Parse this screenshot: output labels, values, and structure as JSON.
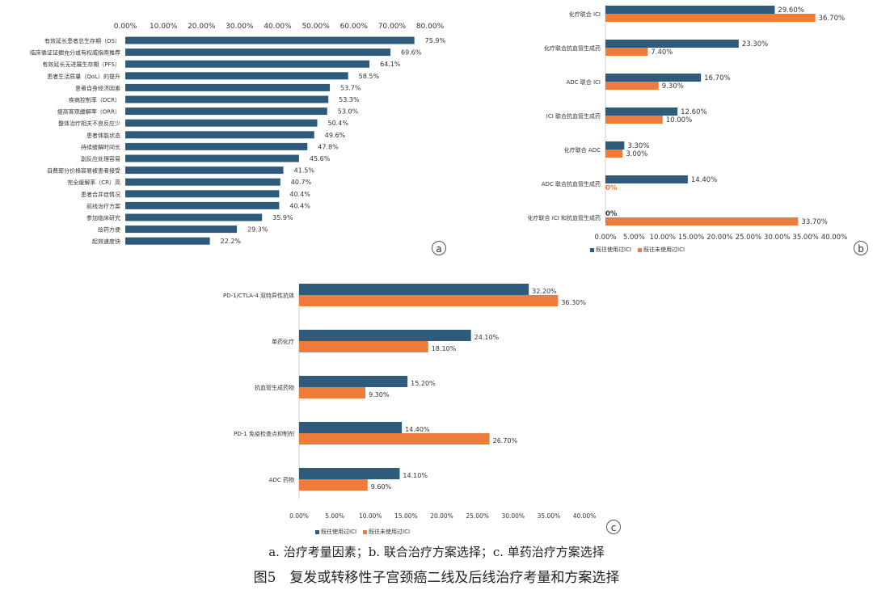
{
  "chart_data": [
    {
      "panel": "a",
      "type": "bar",
      "orientation": "horizontal",
      "categories": [
        "有效延长患者总生存期（OS）",
        "临床循证证据充分或有权威指南推荐",
        "有效延长无进展生存期（PFS）",
        "患者生活质量（QoL）的提升",
        "患者自身经济因素",
        "疾病控制率（DCR）",
        "提高客观缓解率（ORR）",
        "整体治疗相关不良反应少",
        "患者体能状态",
        "持续缓解时间长",
        "副反应处理容易",
        "自费部分价格容易被患者接受",
        "完全缓解率（CR）高",
        "患者合并症情况",
        "前线治疗方案",
        "参加临床研究",
        "给药方便",
        "起效速度快"
      ],
      "values": [
        75.9,
        69.6,
        64.1,
        58.5,
        53.7,
        53.3,
        53.0,
        50.4,
        49.6,
        47.8,
        45.6,
        41.5,
        40.7,
        40.4,
        40.4,
        35.9,
        29.3,
        22.2
      ],
      "value_labels": [
        "75.9%",
        "69.6%",
        "64.1%",
        "58.5%",
        "53.7%",
        "53.3%",
        "53.0%",
        "50.4%",
        "49.6%",
        "47.8%",
        "45.6%",
        "41.5%",
        "40.7%",
        "40.4%",
        "40.4%",
        "35.9%",
        "29.3%",
        "22.2%"
      ],
      "axis_ticks": [
        "0.00%",
        "10.00%",
        "20.00%",
        "30.00%",
        "40.00%",
        "50.00%",
        "60.00%",
        "70.00%",
        "80.00%"
      ],
      "xlim": [
        0,
        80
      ],
      "axis_position": "top",
      "grid": false,
      "color": "#2e5b7b",
      "letter": "a"
    },
    {
      "panel": "b",
      "type": "bar",
      "orientation": "horizontal",
      "categories": [
        "化疗联合 ICI",
        "化疗联合抗血管生成药",
        "ADC 联合 ICI",
        "ICI 联合抗血管生成药",
        "化疗联合 ADC",
        "ADC 联合抗血管生成药",
        "化疗联合 ICI 和抗血管生成药"
      ],
      "series": [
        {
          "name": "既往使用过ICI",
          "color": "#2e5b7b",
          "values": [
            29.6,
            23.3,
            16.7,
            12.6,
            3.3,
            14.4,
            0
          ],
          "value_labels": [
            "29.60%",
            "23.30%",
            "16.70%",
            "12.60%",
            "3.30%",
            "14.40%",
            "0%"
          ]
        },
        {
          "name": "既往未使用过ICI",
          "color": "#ee7b3a",
          "values": [
            36.7,
            7.4,
            9.3,
            10.0,
            3.0,
            0,
            33.7
          ],
          "value_labels": [
            "36.70%",
            "7.40%",
            "9.30%",
            "10.00%",
            "3.00%",
            "0%",
            "33.70%"
          ]
        }
      ],
      "axis_ticks": [
        "0.00%",
        "5.00%",
        "10.00%",
        "15.00%",
        "20.00%",
        "25.00%",
        "30.00%",
        "35.00%",
        "40.00%"
      ],
      "xlim": [
        0,
        40
      ],
      "axis_position": "bottom",
      "legend_position": "bottom",
      "grid": false,
      "letter": "b"
    },
    {
      "panel": "c",
      "type": "bar",
      "orientation": "horizontal",
      "categories": [
        "PD-1/CTLA-4 双特异性抗体",
        "单药化疗",
        "抗血管生成药物",
        "PD-1 免疫检查点抑制剂",
        "ADC 药物"
      ],
      "series": [
        {
          "name": "既往使用过ICI",
          "color": "#2e5b7b",
          "values": [
            32.2,
            24.1,
            15.2,
            14.4,
            14.1
          ],
          "value_labels": [
            "32.20%",
            "24.10%",
            "15.20%",
            "14.40%",
            "14.10%"
          ]
        },
        {
          "name": "既往未使用过ICI",
          "color": "#ee7b3a",
          "values": [
            36.3,
            18.1,
            9.3,
            26.7,
            9.6
          ],
          "value_labels": [
            "36.30%",
            "18.10%",
            "9.30%",
            "26.70%",
            "9.60%"
          ]
        }
      ],
      "axis_ticks": [
        "0.00%",
        "5.00%",
        "10.00%",
        "15.00%",
        "20.00%",
        "25.00%",
        "30.00%",
        "35.00%",
        "40.00%"
      ],
      "xlim": [
        0,
        40
      ],
      "axis_position": "bottom",
      "legend_position": "bottom",
      "grid": false,
      "letter": "c"
    }
  ],
  "captions": {
    "sub": "a. 治疗考量因素；b. 联合治疗方案选择；c. 单药治疗方案选择",
    "title": "图5　复发或转移性子宫颈癌二线及后线治疗考量和方案选择"
  }
}
